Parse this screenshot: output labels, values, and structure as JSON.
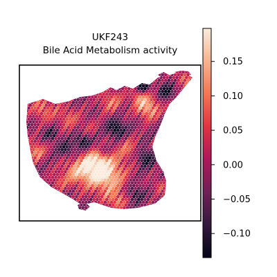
{
  "chart_data": {
    "type": "heatmap",
    "title_line1": "UKF243",
    "title_line2": "Bile Acid Metabolism activity",
    "colormap": "rocket",
    "colormap_stops": [
      "#03051a",
      "#35193e",
      "#701f57",
      "#ad1759",
      "#e13342",
      "#f37651",
      "#f6b48f",
      "#faebdd"
    ],
    "color_range": [
      -0.135,
      0.198
    ],
    "colorbar_ticks": [
      {
        "value": 0.15,
        "label": "0.15"
      },
      {
        "value": 0.1,
        "label": "0.10"
      },
      {
        "value": 0.05,
        "label": "0.05"
      },
      {
        "value": 0.0,
        "label": "0.00"
      },
      {
        "value": -0.05,
        "label": "−0.05"
      },
      {
        "value": -0.1,
        "label": "−0.10"
      }
    ]
  }
}
